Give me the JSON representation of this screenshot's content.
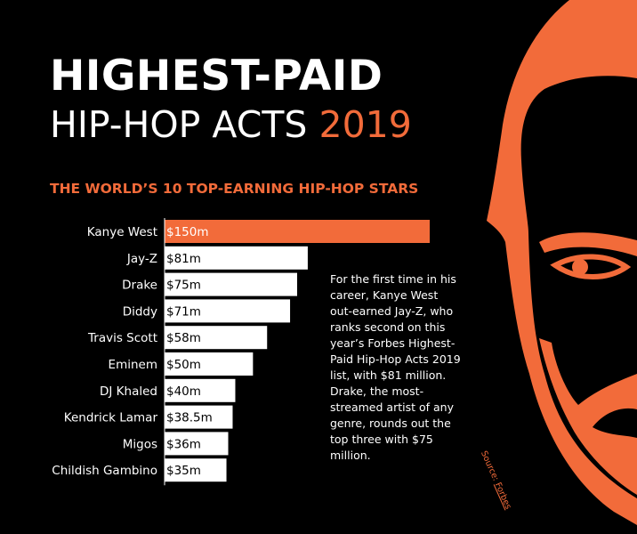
{
  "header": {
    "title_line1": "HIGHEST-PAID",
    "title_line2": "HIP-HOP ACTS",
    "title_year": "2019",
    "subtitle": "THE WORLD’S 10 TOP-EARNING HIP-HOP STARS"
  },
  "description": "For the first time in his career, Kanye West out-earned Jay-Z, who ranks second on this year’s Forbes Highest-Paid Hip-Hop Acts 2019 list, with $81 million. Drake, the most-streamed artist of any genre, rounds out the top three with $75 million.",
  "source": {
    "prefix": "Source: ",
    "name": "Forbes"
  },
  "colors": {
    "background": "#000000",
    "accent": "#f26b3a",
    "bar_default": "#ffffff",
    "bar_highlight": "#f26b3a"
  },
  "illustration": {
    "icon": "face-illustration-icon"
  },
  "chart_data": {
    "type": "bar",
    "orientation": "horizontal",
    "categories": [
      "Kanye West",
      "Jay-Z",
      "Drake",
      "Diddy",
      "Travis Scott",
      "Eminem",
      "DJ Khaled",
      "Kendrick Lamar",
      "Migos",
      "Childish Gambino"
    ],
    "values": [
      150,
      81,
      75,
      71,
      58,
      50,
      40,
      38.5,
      36,
      35
    ],
    "value_labels": [
      "$150m",
      "$81m",
      "$75m",
      "$71m",
      "$58m",
      "$50m",
      "$40m",
      "$38.5m",
      "$36m",
      "$35m"
    ],
    "unit": "million USD",
    "highlight_index": 0,
    "grid": false,
    "legend": "none"
  }
}
